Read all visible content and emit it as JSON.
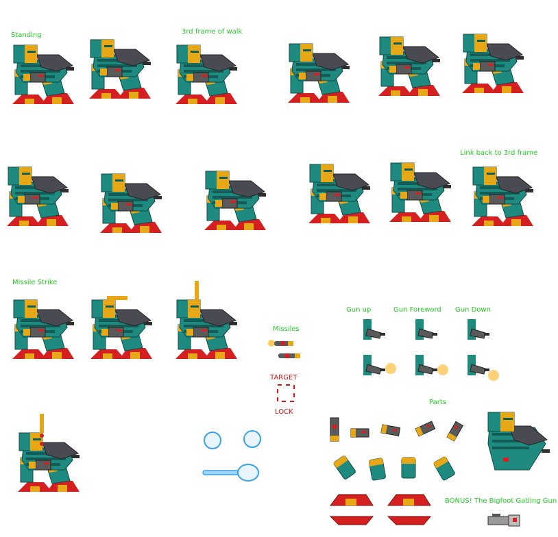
{
  "labels": {
    "standing": "Standing",
    "third_frame": "3rd frame of walk",
    "link_back": "Link back to 3rd frame",
    "missile_strike": "Missile Strike",
    "missiles": "Missiles",
    "target": "TARGET",
    "lock": "LOCK",
    "gun_up": "Gun up",
    "gun_foreword": "Gun Foreword",
    "gun_down": "Gun Down",
    "parts": "Parts",
    "bonus": "BONUS! The Bigfoot Gatling Gun"
  },
  "colors": {
    "label_green": "#22cc22",
    "label_red": "#dd1111",
    "teal": "#1f8a80",
    "teal_dark": "#135c56",
    "gold": "#e6a817",
    "red": "#d42020",
    "gray": "#5a5a5a",
    "gray_dark": "#2e2e2e",
    "blue": "#3aa0e8"
  },
  "sprites": {
    "walk_row1": 6,
    "walk_row2": 6,
    "missile_strike": 3,
    "missile_strike_extra": 1,
    "gun_frames": 6,
    "missile_sprites": 2,
    "part_limbs": 9,
    "feet": 4
  }
}
